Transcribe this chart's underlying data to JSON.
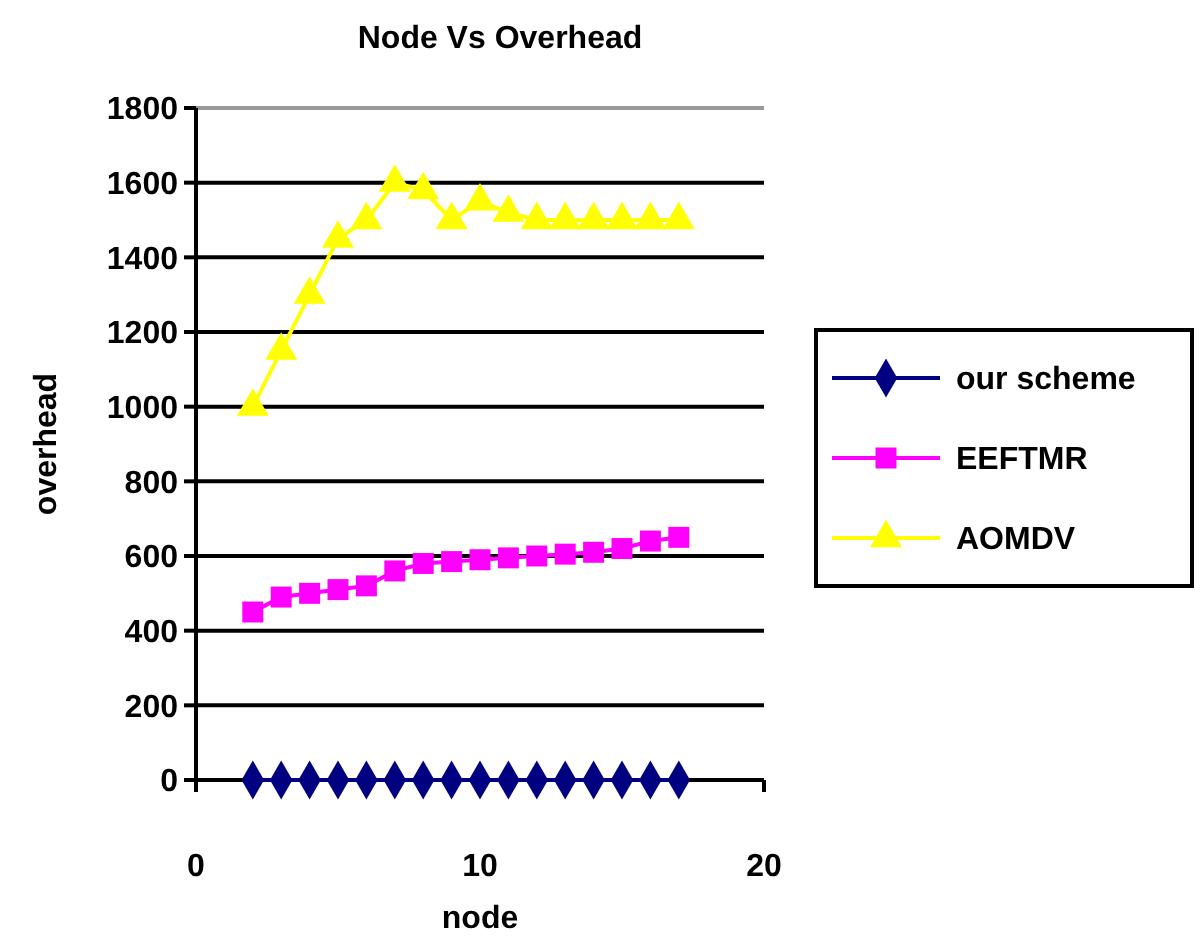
{
  "chart_data": {
    "type": "line",
    "title": "Node Vs Overhead",
    "xlabel": "node",
    "ylabel": "overhead",
    "x": [
      2,
      3,
      4,
      5,
      6,
      7,
      8,
      9,
      10,
      11,
      12,
      13,
      14,
      15,
      16,
      17
    ],
    "series": [
      {
        "name": "our scheme",
        "color": "#000080",
        "marker": "diamond",
        "values": [
          0,
          0,
          0,
          0,
          0,
          0,
          0,
          0,
          0,
          0,
          0,
          0,
          0,
          0,
          0,
          0
        ]
      },
      {
        "name": "EEFTMR",
        "color": "#ff00ff",
        "marker": "square",
        "values": [
          450,
          490,
          500,
          510,
          520,
          560,
          580,
          585,
          590,
          595,
          600,
          605,
          610,
          620,
          640,
          650
        ]
      },
      {
        "name": "AOMDV",
        "color": "#ffff00",
        "marker": "triangle",
        "values": [
          1000,
          1150,
          1300,
          1450,
          1500,
          1600,
          1580,
          1500,
          1550,
          1520,
          1500,
          1500,
          1500,
          1500,
          1500,
          1500
        ]
      }
    ],
    "xlim": [
      0,
      20
    ],
    "xticks": [
      0,
      10,
      20
    ],
    "ylim": [
      0,
      1800
    ],
    "yticks": [
      0,
      200,
      400,
      600,
      800,
      1000,
      1200,
      1400,
      1600,
      1800
    ],
    "grid": "y",
    "legend": "right"
  }
}
